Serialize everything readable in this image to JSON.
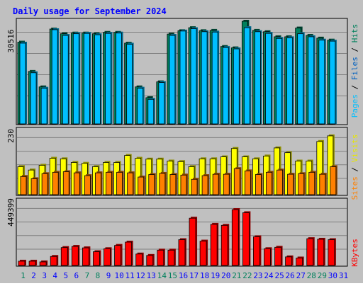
{
  "chart_data": [
    {
      "type": "bar",
      "title": "Daily usage for September 2024",
      "ylabel_parts": [
        "Pages",
        "Files",
        "Hits"
      ],
      "ymax_label": "30516",
      "ylim": [
        0,
        30516
      ],
      "categories": [
        "1",
        "2",
        "3",
        "4",
        "5",
        "6",
        "7",
        "8",
        "9",
        "10",
        "11",
        "12",
        "13",
        "14",
        "15",
        "16",
        "17",
        "18",
        "19",
        "20",
        "21",
        "22",
        "23",
        "24",
        "25",
        "26",
        "27",
        "28",
        "29",
        "30",
        "31"
      ],
      "weekend_days": [
        "1",
        "7",
        "8",
        "14",
        "15",
        "21",
        "22",
        "28",
        "29"
      ],
      "series": [
        {
          "name": "Hits",
          "color": "#00805c",
          "values": [
            24300,
            15600,
            11000,
            28200,
            26800,
            27000,
            27000,
            26800,
            27200,
            27200,
            24000,
            11000,
            7800,
            12500,
            26700,
            27700,
            28600,
            27700,
            27800,
            23000,
            22600,
            30516,
            27800,
            27400,
            25900,
            25900,
            28500,
            26300,
            25500,
            24900,
            null
          ]
        },
        {
          "name": "Files",
          "color": "#00bfff",
          "values": [
            24000,
            15200,
            10600,
            28000,
            26300,
            26800,
            26900,
            26500,
            26900,
            27000,
            23700,
            10600,
            7300,
            12300,
            26300,
            27600,
            28300,
            27400,
            27300,
            22700,
            22300,
            28600,
            27400,
            26900,
            25400,
            25600,
            26800,
            25900,
            24900,
            24600,
            null
          ]
        },
        {
          "name": "Pages",
          "color": "#0060c0",
          "values": [
            0,
            0,
            0,
            0,
            0,
            0,
            0,
            0,
            0,
            0,
            0,
            0,
            0,
            0,
            0,
            0,
            0,
            0,
            0,
            0,
            0,
            0,
            0,
            0,
            0,
            0,
            0,
            0,
            0,
            0,
            null
          ]
        }
      ]
    },
    {
      "type": "bar",
      "ylabel_parts": [
        "Sites",
        "Visits"
      ],
      "ymax_label": "230",
      "ylim": [
        0,
        230
      ],
      "categories": [
        "1",
        "2",
        "3",
        "4",
        "5",
        "6",
        "7",
        "8",
        "9",
        "10",
        "11",
        "12",
        "13",
        "14",
        "15",
        "16",
        "17",
        "18",
        "19",
        "20",
        "21",
        "22",
        "23",
        "24",
        "25",
        "26",
        "27",
        "28",
        "29",
        "30",
        "31"
      ],
      "series": [
        {
          "name": "Visits",
          "color": "#ffff00",
          "values": [
            100,
            88,
            105,
            130,
            128,
            115,
            112,
            100,
            115,
            115,
            140,
            130,
            127,
            127,
            120,
            118,
            100,
            128,
            128,
            135,
            165,
            135,
            128,
            138,
            167,
            150,
            120,
            120,
            190,
            210,
            null
          ]
        },
        {
          "name": "Sites",
          "color": "#ff8000",
          "values": [
            65,
            57,
            75,
            80,
            82,
            78,
            68,
            78,
            80,
            80,
            78,
            63,
            72,
            76,
            72,
            70,
            55,
            68,
            73,
            73,
            93,
            85,
            72,
            80,
            88,
            73,
            75,
            80,
            73,
            100,
            null
          ]
        }
      ]
    },
    {
      "type": "bar",
      "ylabel_parts": [
        "KBytes"
      ],
      "ymax_label": "449399",
      "ylim": [
        0,
        449399
      ],
      "categories": [
        "1",
        "2",
        "3",
        "4",
        "5",
        "6",
        "7",
        "8",
        "9",
        "10",
        "11",
        "12",
        "13",
        "14",
        "15",
        "16",
        "17",
        "18",
        "19",
        "20",
        "21",
        "22",
        "23",
        "24",
        "25",
        "26",
        "27",
        "28",
        "29",
        "30",
        "31"
      ],
      "series": [
        {
          "name": "KBytes",
          "color": "#ff0000",
          "values": [
            30000,
            30000,
            25000,
            63000,
            125000,
            133000,
            123000,
            96000,
            117000,
            140000,
            163000,
            80000,
            70000,
            107000,
            107000,
            180000,
            330000,
            170000,
            287000,
            280000,
            390000,
            368000,
            200000,
            117000,
            127000,
            60000,
            52000,
            187000,
            183000,
            180000,
            null
          ]
        }
      ]
    }
  ],
  "colors": {
    "background": "#c0c0c0",
    "border": "#000000",
    "title": "#0000ff",
    "weekend_label": "#00805c",
    "weekday_label": "#0000ff",
    "gridline": "#808080"
  }
}
